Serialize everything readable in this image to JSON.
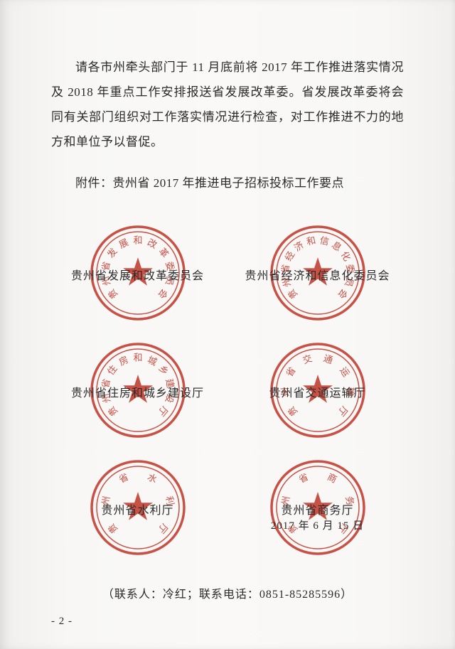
{
  "paragraph": "请各市州牵头部门于 11 月底前将 2017 年工作推进落实情况及 2018 年重点工作安排报送省发展改革委。省发展改革委将会同有关部门组织对工作落实情况进行检查，对工作推进不力的地方和单位予以督促。",
  "attachment_line": "附件：贵州省 2017 年推进电子招标投标工作要点",
  "seals": [
    {
      "label": "贵州省发展和改革委员会",
      "ring_text": "贵州省发展和改革委员会",
      "date": ""
    },
    {
      "label": "贵州省经济和信息化委员会",
      "ring_text": "贵州省经济和信息化委员会",
      "date": ""
    },
    {
      "label": "贵州省住房和城乡建设厅",
      "ring_text": "贵州省住房和城乡建设厅",
      "date": ""
    },
    {
      "label": "贵州省交通运输厅",
      "ring_text": "贵州省交通运输厅",
      "date": ""
    },
    {
      "label": "贵州省水利厅",
      "ring_text": "贵州省水利厅",
      "date": ""
    },
    {
      "label": "贵州省商务厅",
      "ring_text": "贵州省商务厅",
      "date": "2017 年 6 月 15 日"
    }
  ],
  "contact": "（联系人：冷红；联系电话：0851-85285596）",
  "page_number": "- 2 -",
  "style": {
    "seal_color": "#c23a2e",
    "seal_outer_radius": 65,
    "seal_inner_radius": 58,
    "seal_text_radius": 46,
    "seal_font_size": 13,
    "star_radius": 22,
    "body_font_size": 17,
    "text_color": "#2a2a2a",
    "bg_color": "#f8f7f5"
  }
}
